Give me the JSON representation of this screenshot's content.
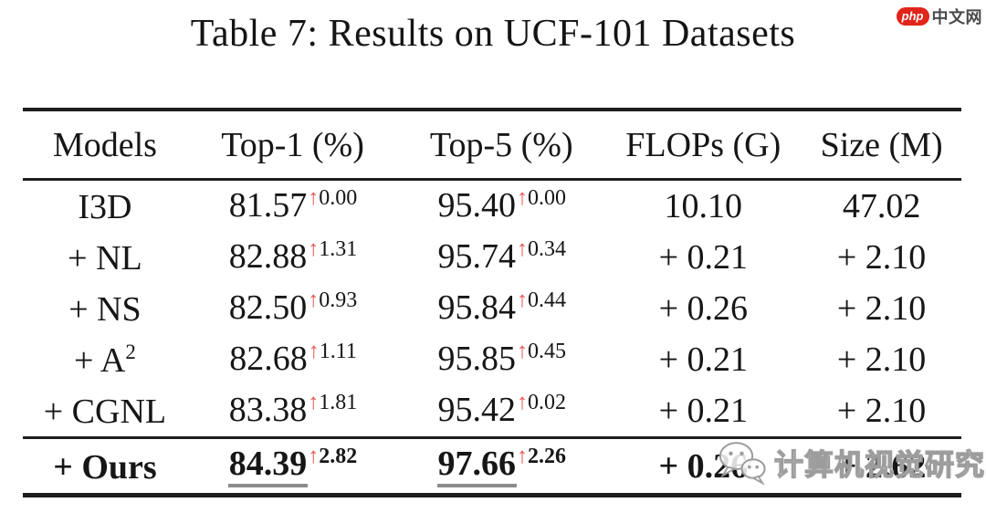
{
  "title": "Table 7: Results on UCF-101 Datasets",
  "logo": {
    "brand": "php",
    "suffix": "中文网"
  },
  "table": {
    "arrow": "↑",
    "headers": [
      "Models",
      "Top-1 (%)",
      "Top-5 (%)",
      "FLOPs (G)",
      "Size (M)"
    ],
    "rows": [
      {
        "model": "I3D",
        "model_sup": "",
        "top1": "81.57",
        "top1_delta": "0.00",
        "top5": "95.40",
        "top5_delta": "0.00",
        "flops": "10.10",
        "size": "47.02",
        "emphasis": false
      },
      {
        "model": "+ NL",
        "model_sup": "",
        "top1": "82.88",
        "top1_delta": "1.31",
        "top5": "95.74",
        "top5_delta": "0.34",
        "flops": "+ 0.21",
        "size": "+ 2.10",
        "emphasis": false
      },
      {
        "model": "+ NS",
        "model_sup": "",
        "top1": "82.50",
        "top1_delta": "0.93",
        "top5": "95.84",
        "top5_delta": "0.44",
        "flops": "+ 0.26",
        "size": "+ 2.10",
        "emphasis": false
      },
      {
        "model": "+ A",
        "model_sup": "2",
        "top1": "82.68",
        "top1_delta": "1.11",
        "top5": "95.85",
        "top5_delta": "0.45",
        "flops": "+ 0.21",
        "size": "+ 2.10",
        "emphasis": false
      },
      {
        "model": "+ CGNL",
        "model_sup": "",
        "top1": "83.38",
        "top1_delta": "1.81",
        "top5": "95.42",
        "top5_delta": "0.02",
        "flops": "+ 0.21",
        "size": "+ 2.10",
        "emphasis": false
      },
      {
        "model": "+ Ours",
        "model_sup": "",
        "top1": "84.39",
        "top1_delta": "2.82",
        "top5": "97.66",
        "top5_delta": "2.26",
        "flops": "+ 0.26",
        "size": "+ 2.62",
        "emphasis": true
      }
    ]
  },
  "watermark": {
    "text": "计算机视觉研究院"
  },
  "colors": {
    "arrow": "#e8564f",
    "text": "#161616",
    "logo_red": "#e0251b",
    "rule": "#1d1d1d"
  }
}
